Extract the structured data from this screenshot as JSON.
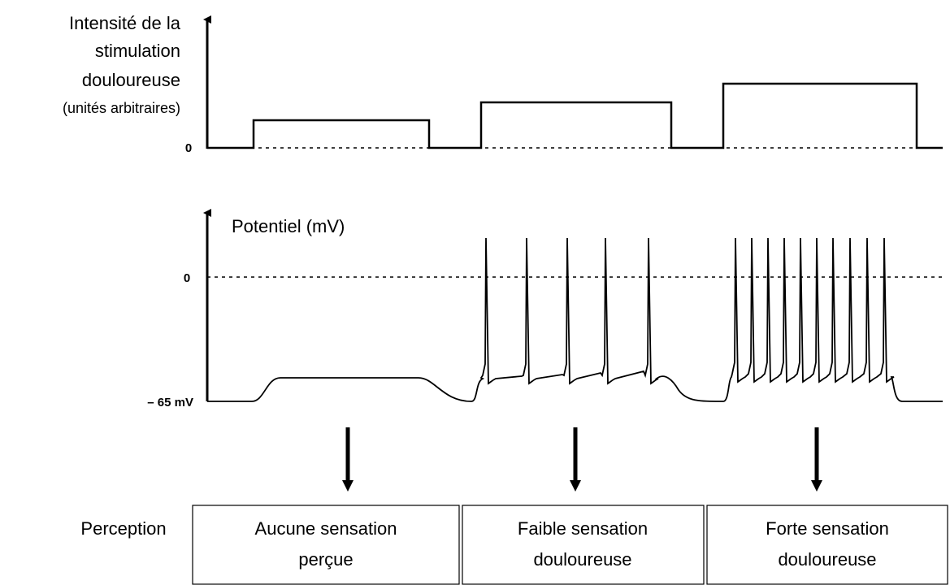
{
  "top_axis": {
    "label_lines": [
      "Intensité de la",
      "stimulation",
      "douloureuse",
      "(unités arbitraires)"
    ],
    "zero_tick": "0"
  },
  "bottom_axis": {
    "label": "Potentiel (mV)",
    "zero_tick": "0",
    "rest_tick": "– 65 mV"
  },
  "perception": {
    "label": "Perception",
    "boxes": [
      [
        "Aucune sensation",
        "perçue"
      ],
      [
        "Faible sensation",
        "douloureuse"
      ],
      [
        "Forte sensation",
        "douloureuse"
      ]
    ]
  }
}
